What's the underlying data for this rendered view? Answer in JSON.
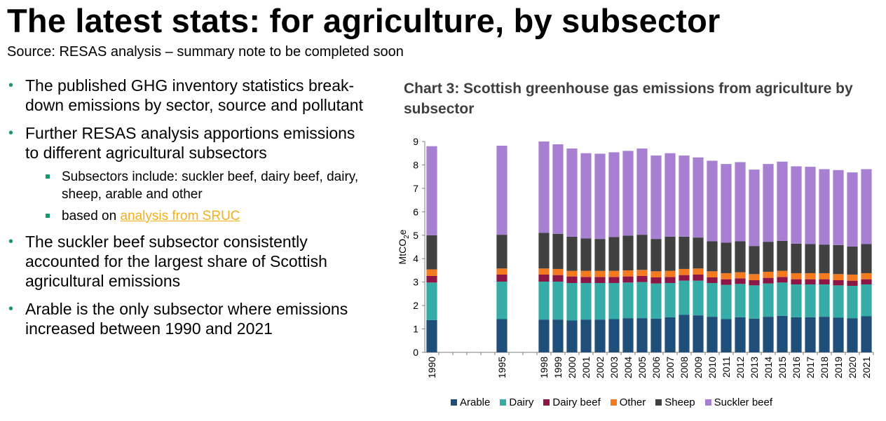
{
  "header": {
    "title": "The latest stats: for agriculture, by subsector",
    "subtitle": "Source: RESAS analysis – summary note to be completed soon"
  },
  "bullets": [
    {
      "text": "The published GHG inventory statistics break-down emissions by sector, source and pollutant"
    },
    {
      "text": "Further RESAS analysis apportions emissions to different agricultural subsectors"
    },
    {
      "text": "The suckler beef subsector consistently accounted for the largest share of Scottish agricultural emissions"
    },
    {
      "text": "Arable is the only subsector where emissions increased between 1990 and 2021"
    }
  ],
  "sub_bullets": {
    "item1": "Subsectors include: suckler beef, dairy beef, dairy, sheep, arable and other",
    "item2_prefix": "based on ",
    "item2_link": "analysis from SRUC"
  },
  "bullet_glyph": "•",
  "chart_data": {
    "type": "bar",
    "stacked": true,
    "title": "Chart 3: Scottish greenhouse gas emissions from agriculture by subsector",
    "ylabel": "MtCO2e",
    "ylim": [
      0,
      9
    ],
    "yticks": [
      0,
      1,
      2,
      3,
      4,
      5,
      6,
      7,
      8,
      9
    ],
    "categories": [
      "1990",
      "",
      "",
      "",
      "",
      "1995",
      "",
      "",
      "1998",
      "1999",
      "2000",
      "2001",
      "2002",
      "2003",
      "2004",
      "2005",
      "2006",
      "2007",
      "2008",
      "2009",
      "2010",
      "2011",
      "2012",
      "2013",
      "2014",
      "2015",
      "2016",
      "2017",
      "2018",
      "2019",
      "2020",
      "2021"
    ],
    "series": [
      {
        "name": "Arable",
        "color": "#1f4e79",
        "values": [
          1.38,
          null,
          null,
          null,
          null,
          1.42,
          null,
          null,
          1.4,
          1.4,
          1.36,
          1.4,
          1.4,
          1.42,
          1.46,
          1.46,
          1.44,
          1.5,
          1.6,
          1.58,
          1.52,
          1.42,
          1.5,
          1.44,
          1.52,
          1.56,
          1.5,
          1.5,
          1.52,
          1.48,
          1.46,
          1.54
        ]
      },
      {
        "name": "Dairy",
        "color": "#35aca6",
        "values": [
          1.6,
          null,
          null,
          null,
          null,
          1.6,
          null,
          null,
          1.62,
          1.62,
          1.6,
          1.56,
          1.56,
          1.54,
          1.52,
          1.54,
          1.5,
          1.46,
          1.46,
          1.48,
          1.44,
          1.46,
          1.42,
          1.42,
          1.42,
          1.42,
          1.4,
          1.4,
          1.38,
          1.38,
          1.38,
          1.36
        ]
      },
      {
        "name": "Dairy beef",
        "color": "#8c1646",
        "values": [
          0.28,
          null,
          null,
          null,
          null,
          0.3,
          null,
          null,
          0.3,
          0.28,
          0.28,
          0.26,
          0.26,
          0.26,
          0.26,
          0.26,
          0.26,
          0.26,
          0.24,
          0.26,
          0.24,
          0.24,
          0.24,
          0.22,
          0.24,
          0.24,
          0.22,
          0.22,
          0.22,
          0.22,
          0.22,
          0.22
        ]
      },
      {
        "name": "Other",
        "color": "#f47a20",
        "values": [
          0.28,
          null,
          null,
          null,
          null,
          0.26,
          null,
          null,
          0.26,
          0.26,
          0.24,
          0.26,
          0.26,
          0.26,
          0.26,
          0.26,
          0.26,
          0.26,
          0.26,
          0.26,
          0.26,
          0.26,
          0.26,
          0.26,
          0.26,
          0.26,
          0.26,
          0.26,
          0.26,
          0.26,
          0.26,
          0.26
        ]
      },
      {
        "name": "Sheep",
        "color": "#404040",
        "values": [
          1.46,
          null,
          null,
          null,
          null,
          1.44,
          null,
          null,
          1.52,
          1.5,
          1.46,
          1.38,
          1.36,
          1.44,
          1.48,
          1.5,
          1.38,
          1.46,
          1.38,
          1.32,
          1.28,
          1.3,
          1.32,
          1.2,
          1.28,
          1.28,
          1.26,
          1.24,
          1.22,
          1.24,
          1.2,
          1.24
        ]
      },
      {
        "name": "Suckler beef",
        "color": "#a780d2",
        "values": [
          3.8,
          null,
          null,
          null,
          null,
          3.8,
          null,
          null,
          3.9,
          3.82,
          3.76,
          3.64,
          3.64,
          3.62,
          3.62,
          3.68,
          3.56,
          3.56,
          3.46,
          3.42,
          3.44,
          3.36,
          3.38,
          3.26,
          3.32,
          3.38,
          3.3,
          3.3,
          3.22,
          3.2,
          3.16,
          3.2
        ]
      }
    ],
    "legend_position": "bottom",
    "grid": false
  }
}
